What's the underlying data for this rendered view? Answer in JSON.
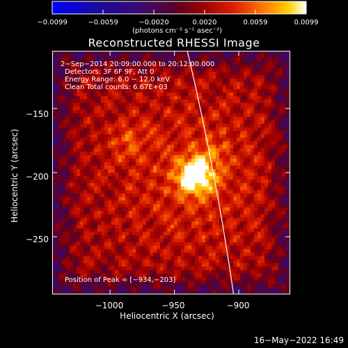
{
  "colorbar": {
    "ticks": [
      "−0.0099",
      "−0.0059",
      "−0.0020",
      "0.0020",
      "0.0059",
      "0.0099"
    ],
    "unit_label": "(photons cm⁻² s⁻¹ asec⁻²)"
  },
  "chart_data": {
    "type": "heatmap",
    "title": "Reconstructed RHESSI Image",
    "xlabel": "Heliocentric X (arcsec)",
    "ylabel": "Heliocentric Y (arcsec)",
    "xlim": [
      -1045,
      -860
    ],
    "ylim": [
      -295,
      -105
    ],
    "xticks": [
      -1000,
      -950,
      -900
    ],
    "xtick_labels": [
      "−1000",
      "−950",
      "−900"
    ],
    "yticks": [
      -150,
      -200,
      -250
    ],
    "ytick_labels": [
      "−150",
      "−200",
      "−250"
    ],
    "color_range": [
      -0.0099,
      0.0099
    ],
    "peak": [
      -934,
      -203
    ],
    "limb_start": [
      -940,
      -105
    ],
    "limb_end": [
      -904,
      -295
    ],
    "annotations": [
      "2−Sep−2014 20:09:00.000 to 20:12:00.000",
      "Detectors: 3F 6F 9F, Att 0",
      "Energy Range: 6.0 − 12.0 keV",
      "Clean     Total counts: 6.67E+03"
    ],
    "peak_label": "Position of Peak = [−934,−203]"
  },
  "footer": "16−May−2022 16:49",
  "colors": {
    "background": "#000000",
    "foreground": "#ffffff"
  }
}
